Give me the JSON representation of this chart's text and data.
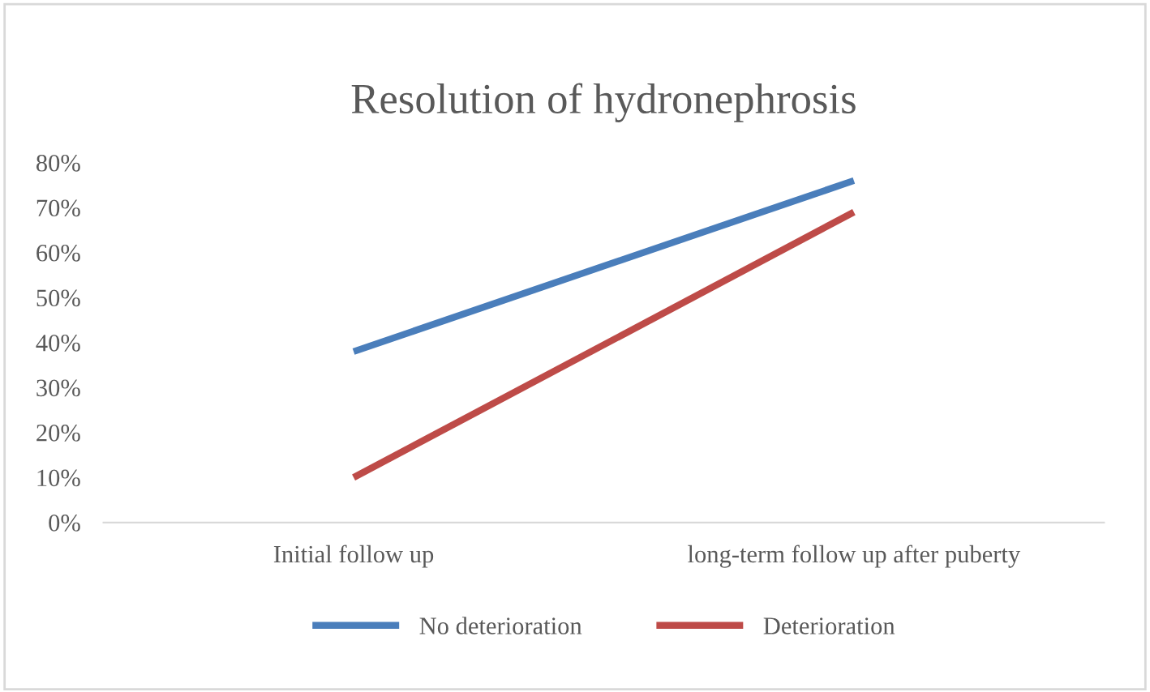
{
  "chart_data": {
    "type": "line",
    "title": "Resolution of hydronephrosis",
    "categories": [
      "Initial follow up",
      "long-term follow up after puberty"
    ],
    "series": [
      {
        "name": "No deterioration",
        "color": "#4a7ebb",
        "values": [
          38,
          76
        ]
      },
      {
        "name": "Deterioration",
        "color": "#be4b48",
        "values": [
          10,
          69
        ]
      }
    ],
    "ylim": [
      0,
      80
    ],
    "yticks": [
      {
        "value": 0,
        "label": "0%"
      },
      {
        "value": 10,
        "label": "10%"
      },
      {
        "value": 20,
        "label": "20%"
      },
      {
        "value": 30,
        "label": "30%"
      },
      {
        "value": 40,
        "label": "40%"
      },
      {
        "value": 50,
        "label": "50%"
      },
      {
        "value": 60,
        "label": "60%"
      },
      {
        "value": 70,
        "label": "70%"
      },
      {
        "value": 80,
        "label": "80%"
      }
    ],
    "grid": false,
    "legend": "bottom",
    "marker": "none",
    "line_style": "solid"
  }
}
